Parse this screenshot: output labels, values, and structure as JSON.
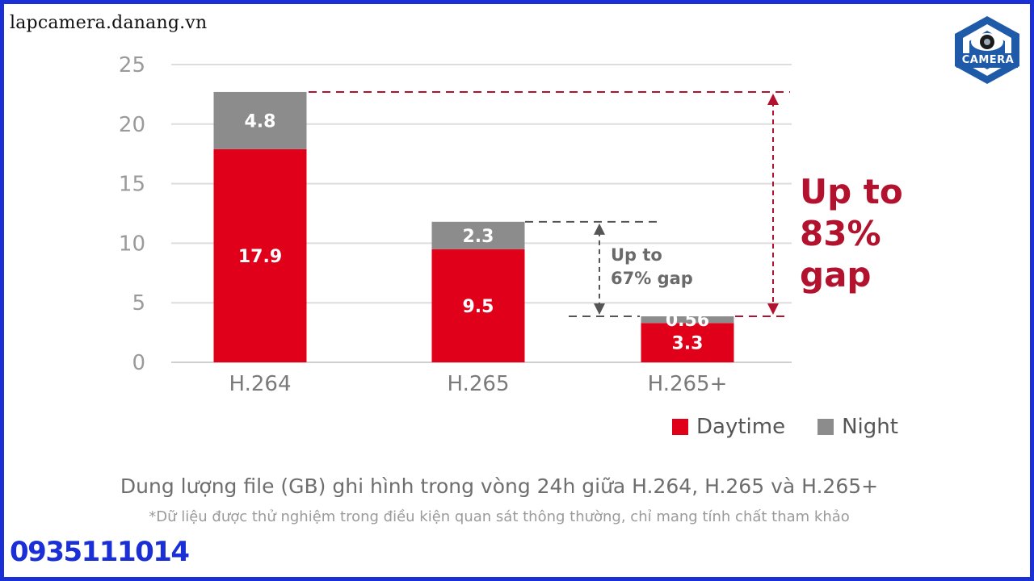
{
  "watermark": {
    "site": "lapcamera.danang.vn",
    "logo_text": "CAMERA",
    "phone": "0935111014"
  },
  "chart_data": {
    "type": "bar",
    "stacked": true,
    "categories": [
      "H.264",
      "H.265",
      "H.265+"
    ],
    "series": [
      {
        "name": "Daytime",
        "color": "#e1001a",
        "values": [
          17.9,
          9.5,
          3.3
        ],
        "labels": [
          "17.9",
          "9.5",
          "3.3"
        ]
      },
      {
        "name": "Night",
        "color": "#8c8c8c",
        "values": [
          4.8,
          2.3,
          0.56
        ],
        "labels": [
          "4.8",
          "2.3",
          "0.56"
        ]
      }
    ],
    "ylim": [
      0,
      25
    ],
    "yticks": [
      "0",
      "5",
      "10",
      "15",
      "20",
      "25"
    ],
    "grid": true,
    "legend_position": "bottom-right",
    "annotations": [
      {
        "line1": "Up to",
        "line2": "67% gap",
        "from_category": "H.265",
        "to_category": "H.265+",
        "color": "#555555"
      },
      {
        "line1": "Up to",
        "line2": "83%",
        "line3": "gap",
        "from_category": "H.264",
        "to_category": "H.265+",
        "color": "#b3122e"
      }
    ],
    "caption": "Dung lượng file (GB) ghi hình trong vòng 24h giữa H.264, H.265 và H.265+",
    "note": "*Dữ liệu được thử nghiệm trong điều kiện quan sát thông thường, chỉ mang tính chất tham khảo"
  }
}
